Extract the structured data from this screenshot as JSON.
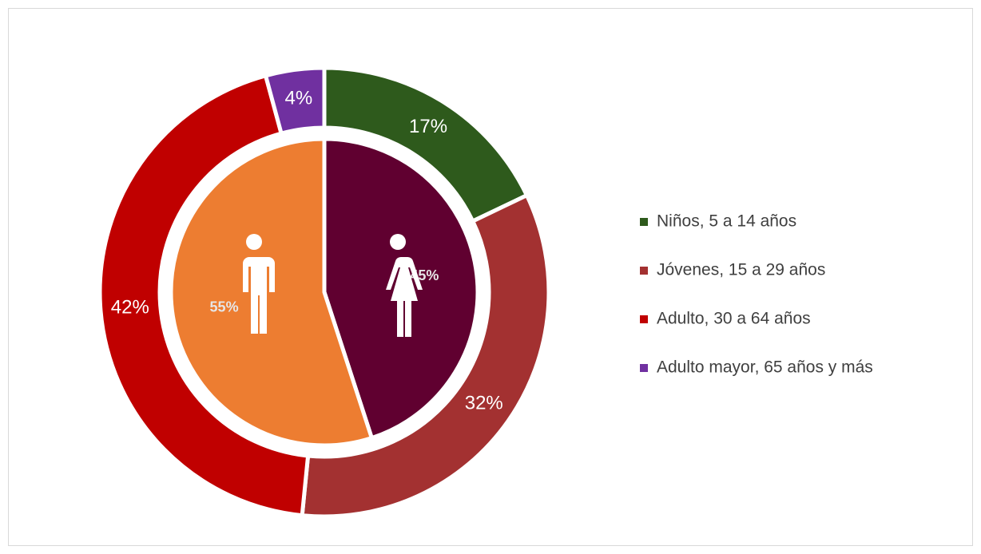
{
  "chart_data": [
    {
      "type": "donut",
      "categories": [
        "Niños, 5 a 14 años",
        "Jóvenes, 15 a 29 años",
        "Adulto, 30 a 64 años",
        "Adulto mayor, 65 años y más"
      ],
      "values": [
        17,
        32,
        42,
        4
      ],
      "value_labels": [
        "17%",
        "32%",
        "42%",
        "4%"
      ],
      "colors": [
        "#2e5a1c",
        "#a33131",
        "#c00000",
        "#7030a0"
      ],
      "legend": "right"
    },
    {
      "type": "pie",
      "values": [
        45,
        55
      ],
      "value_labels": [
        "45%",
        "55%"
      ],
      "colors": [
        "#600030",
        "#ed7d31"
      ]
    }
  ]
}
